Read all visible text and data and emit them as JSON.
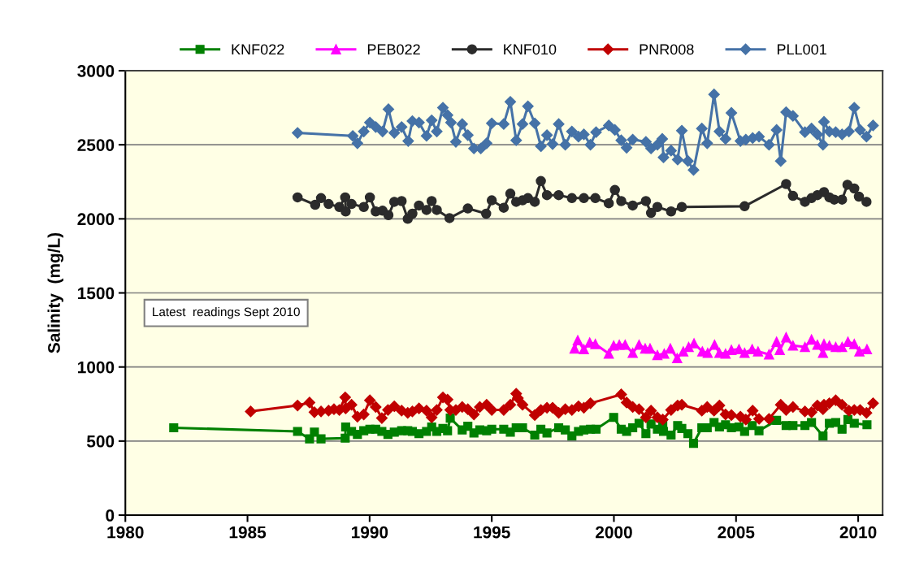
{
  "chart_data": {
    "type": "line",
    "ylabel": "Salinity  (mg/L)",
    "xlim": [
      1980,
      2011
    ],
    "xticks": [
      1980,
      1985,
      1990,
      1995,
      2000,
      2005,
      2010
    ],
    "ylim": [
      0,
      3000
    ],
    "yticks": [
      0,
      500,
      1000,
      1500,
      2000,
      2500,
      3000
    ],
    "grid": "y",
    "legend": "top",
    "line_style": "solid",
    "annotations": [
      "Latest  readings Sept 2010"
    ],
    "series": [
      {
        "name": "KNF022",
        "color": "#008000",
        "marker": "square",
        "x": [
          1981.98,
          1987.05,
          1987.54,
          1987.74,
          1988.01,
          1989.0,
          1989.02,
          1989.26,
          1989.5,
          1989.76,
          1990.01,
          1990.25,
          1990.5,
          1990.75,
          1991.01,
          1991.31,
          1991.56,
          1991.75,
          1992.02,
          1992.33,
          1992.54,
          1992.75,
          1993.0,
          1993.19,
          1993.3,
          1993.79,
          1994.02,
          1994.27,
          1994.51,
          1994.79,
          1995.0,
          1995.49,
          1995.76,
          1996.0,
          1996.26,
          1996.76,
          1997.01,
          1997.26,
          1997.74,
          1998.01,
          1998.28,
          1998.55,
          1998.77,
          1999.04,
          1999.27,
          1999.99,
          2000.3,
          2000.52,
          2000.77,
          2001.03,
          2001.31,
          2001.52,
          2001.78,
          2002.0,
          2002.03,
          2002.34,
          2002.61,
          2002.78,
          2003.03,
          2003.26,
          2003.6,
          2003.82,
          2004.1,
          2004.32,
          2004.57,
          2004.81,
          2005.12,
          2005.35,
          2005.66,
          2005.94,
          2006.66,
          2007.05,
          2007.33,
          2007.82,
          2008.09,
          2008.56,
          2008.82,
          2009.08,
          2009.34,
          2009.58,
          2009.84,
          2010.36
        ],
        "values": [
          590,
          565,
          515,
          560,
          515,
          520,
          595,
          565,
          545,
          570,
          580,
          580,
          565,
          545,
          560,
          570,
          570,
          565,
          550,
          565,
          595,
          565,
          585,
          570,
          655,
          575,
          600,
          555,
          575,
          570,
          580,
          580,
          560,
          590,
          590,
          540,
          580,
          555,
          590,
          575,
          535,
          565,
          575,
          580,
          580,
          660,
          580,
          565,
          590,
          620,
          550,
          615,
          580,
          615,
          565,
          540,
          605,
          585,
          550,
          485,
          590,
          590,
          625,
          595,
          610,
          590,
          595,
          565,
          605,
          570,
          640,
          605,
          605,
          605,
          625,
          535,
          620,
          625,
          580,
          645,
          620,
          610
        ]
      },
      {
        "name": "PEB022",
        "color": "#ff00ff",
        "marker": "triangle",
        "x": [
          1998.39,
          1998.52,
          1998.77,
          1999.01,
          1999.24,
          1999.79,
          1999.99,
          2000.22,
          2000.46,
          2000.77,
          2001.03,
          2001.28,
          2001.48,
          2001.78,
          2002.06,
          2002.31,
          2002.59,
          2002.84,
          2003.06,
          2003.28,
          2003.62,
          2003.84,
          2004.12,
          2004.32,
          2004.57,
          2004.81,
          2005.12,
          2005.35,
          2005.66,
          2005.9,
          2006.35,
          2006.66,
          2006.79,
          2007.05,
          2007.33,
          2007.82,
          2008.09,
          2008.33,
          2008.56,
          2008.6,
          2008.82,
          2009.08,
          2009.34,
          2009.58,
          2009.84,
          2010.05,
          2010.36
        ],
        "values": [
          1125,
          1180,
          1120,
          1165,
          1155,
          1090,
          1145,
          1150,
          1150,
          1095,
          1150,
          1125,
          1125,
          1080,
          1090,
          1125,
          1060,
          1105,
          1135,
          1160,
          1105,
          1095,
          1150,
          1095,
          1090,
          1115,
          1120,
          1095,
          1120,
          1105,
          1085,
          1170,
          1115,
          1200,
          1145,
          1135,
          1185,
          1150,
          1095,
          1155,
          1145,
          1135,
          1135,
          1170,
          1155,
          1105,
          1120
        ]
      },
      {
        "name": "KNF010",
        "color": "#2b2b2b",
        "marker": "circle",
        "x": [
          1987.05,
          1987.77,
          1988.01,
          1988.32,
          1988.76,
          1989.0,
          1989.02,
          1989.26,
          1989.76,
          1990.01,
          1990.25,
          1990.53,
          1990.77,
          1991.01,
          1991.31,
          1991.56,
          1991.75,
          1992.02,
          1992.33,
          1992.54,
          1992.75,
          1993.27,
          1994.02,
          1994.77,
          1995.0,
          1995.49,
          1995.76,
          1996.0,
          1996.26,
          1996.48,
          1996.76,
          1997.01,
          1997.26,
          1997.74,
          1998.28,
          1998.77,
          1999.24,
          1999.79,
          2000.04,
          2000.3,
          2000.77,
          2001.31,
          2001.52,
          2001.78,
          2002.34,
          2002.78,
          2005.35,
          2007.05,
          2007.33,
          2007.82,
          2008.09,
          2008.33,
          2008.6,
          2008.82,
          2009.02,
          2009.34,
          2009.56,
          2009.84,
          2010.03,
          2010.34
        ],
        "values": [
          2145,
          2095,
          2140,
          2100,
          2080,
          2145,
          2050,
          2100,
          2080,
          2145,
          2050,
          2055,
          2025,
          2115,
          2120,
          2000,
          2035,
          2090,
          2060,
          2120,
          2060,
          2005,
          2070,
          2035,
          2125,
          2075,
          2170,
          2115,
          2125,
          2140,
          2115,
          2255,
          2160,
          2160,
          2140,
          2140,
          2140,
          2105,
          2195,
          2120,
          2090,
          2120,
          2040,
          2080,
          2050,
          2080,
          2085,
          2235,
          2155,
          2115,
          2140,
          2160,
          2180,
          2145,
          2130,
          2130,
          2230,
          2205,
          2150,
          2115
        ]
      },
      {
        "name": "PNR008",
        "color": "#c00000",
        "marker": "diamond",
        "x": [
          1985.13,
          1987.05,
          1987.54,
          1987.74,
          1988.01,
          1988.32,
          1988.54,
          1988.76,
          1989.0,
          1989.02,
          1989.26,
          1989.5,
          1989.76,
          1990.01,
          1990.25,
          1990.5,
          1990.75,
          1991.01,
          1991.31,
          1991.56,
          1991.75,
          1992.02,
          1992.33,
          1992.54,
          1992.75,
          1993.0,
          1993.19,
          1993.3,
          1993.53,
          1993.79,
          1994.02,
          1994.27,
          1994.51,
          1994.79,
          1995.0,
          1995.49,
          1995.76,
          1996.0,
          1996.07,
          1996.26,
          1996.76,
          1997.01,
          1997.26,
          1997.49,
          1997.74,
          1998.01,
          1998.28,
          1998.55,
          1998.77,
          1999.04,
          2000.3,
          2000.52,
          2000.77,
          2001.03,
          2001.31,
          2001.52,
          2001.78,
          2002.0,
          2002.34,
          2002.61,
          2002.78,
          2003.6,
          2003.82,
          2004.1,
          2004.32,
          2004.57,
          2004.81,
          2005.18,
          2005.4,
          2005.68,
          2005.94,
          2006.35,
          2006.83,
          2007.05,
          2007.33,
          2007.82,
          2008.09,
          2008.33,
          2008.56,
          2008.6,
          2008.82,
          2009.08,
          2009.34,
          2009.62,
          2009.84,
          2010.08,
          2010.34,
          2010.61
        ],
        "values": [
          700,
          740,
          760,
          695,
          700,
          705,
          715,
          710,
          795,
          720,
          745,
          665,
          680,
          775,
          730,
          655,
          710,
          735,
          705,
          690,
          700,
          720,
          705,
          660,
          710,
          795,
          780,
          710,
          710,
          730,
          715,
          680,
          730,
          745,
          710,
          710,
          745,
          820,
          790,
          745,
          675,
          710,
          725,
          725,
          690,
          715,
          710,
          735,
          725,
          755,
          815,
          760,
          730,
          715,
          660,
          705,
          660,
          645,
          710,
          740,
          745,
          705,
          730,
          705,
          740,
          680,
          675,
          665,
          645,
          705,
          650,
          650,
          745,
          710,
          730,
          700,
          695,
          740,
          715,
          745,
          755,
          775,
          745,
          705,
          710,
          710,
          690,
          755
        ]
      },
      {
        "name": "PLL001",
        "color": "#4572a7",
        "marker": "diamond",
        "x": [
          1987.05,
          1989.31,
          1989.5,
          1989.76,
          1990.01,
          1990.25,
          1990.53,
          1990.77,
          1991.01,
          1991.31,
          1991.58,
          1991.75,
          1992.02,
          1992.33,
          1992.54,
          1992.75,
          1993.0,
          1993.19,
          1993.33,
          1993.53,
          1993.79,
          1994.02,
          1994.27,
          1994.55,
          1994.79,
          1995.0,
          1995.49,
          1995.76,
          1996.0,
          1996.26,
          1996.48,
          1996.76,
          1997.01,
          1997.26,
          1997.49,
          1997.74,
          1998.01,
          1998.28,
          1998.55,
          1998.77,
          1999.04,
          1999.27,
          1999.79,
          2000.04,
          2000.3,
          2000.52,
          2000.77,
          2001.31,
          2001.52,
          2001.78,
          2001.98,
          2002.03,
          2002.34,
          2002.61,
          2002.78,
          2003.03,
          2003.26,
          2003.6,
          2003.82,
          2004.1,
          2004.32,
          2004.57,
          2004.81,
          2005.18,
          2005.4,
          2005.68,
          2005.94,
          2006.35,
          2006.66,
          2006.83,
          2007.05,
          2007.33,
          2007.82,
          2008.09,
          2008.33,
          2008.56,
          2008.6,
          2008.82,
          2009.08,
          2009.34,
          2009.62,
          2009.84,
          2010.08,
          2010.34,
          2010.61
        ],
        "values": [
          2580,
          2560,
          2510,
          2590,
          2650,
          2620,
          2590,
          2740,
          2580,
          2620,
          2525,
          2660,
          2650,
          2560,
          2665,
          2590,
          2750,
          2700,
          2650,
          2520,
          2640,
          2565,
          2475,
          2475,
          2510,
          2645,
          2640,
          2790,
          2530,
          2640,
          2760,
          2645,
          2490,
          2565,
          2505,
          2640,
          2500,
          2590,
          2555,
          2570,
          2500,
          2585,
          2630,
          2600,
          2530,
          2480,
          2535,
          2520,
          2475,
          2500,
          2540,
          2415,
          2460,
          2400,
          2595,
          2390,
          2330,
          2610,
          2510,
          2840,
          2590,
          2540,
          2715,
          2525,
          2535,
          2545,
          2555,
          2500,
          2600,
          2390,
          2720,
          2695,
          2585,
          2610,
          2570,
          2500,
          2655,
          2590,
          2585,
          2570,
          2590,
          2750,
          2600,
          2555,
          2630
        ]
      }
    ]
  }
}
